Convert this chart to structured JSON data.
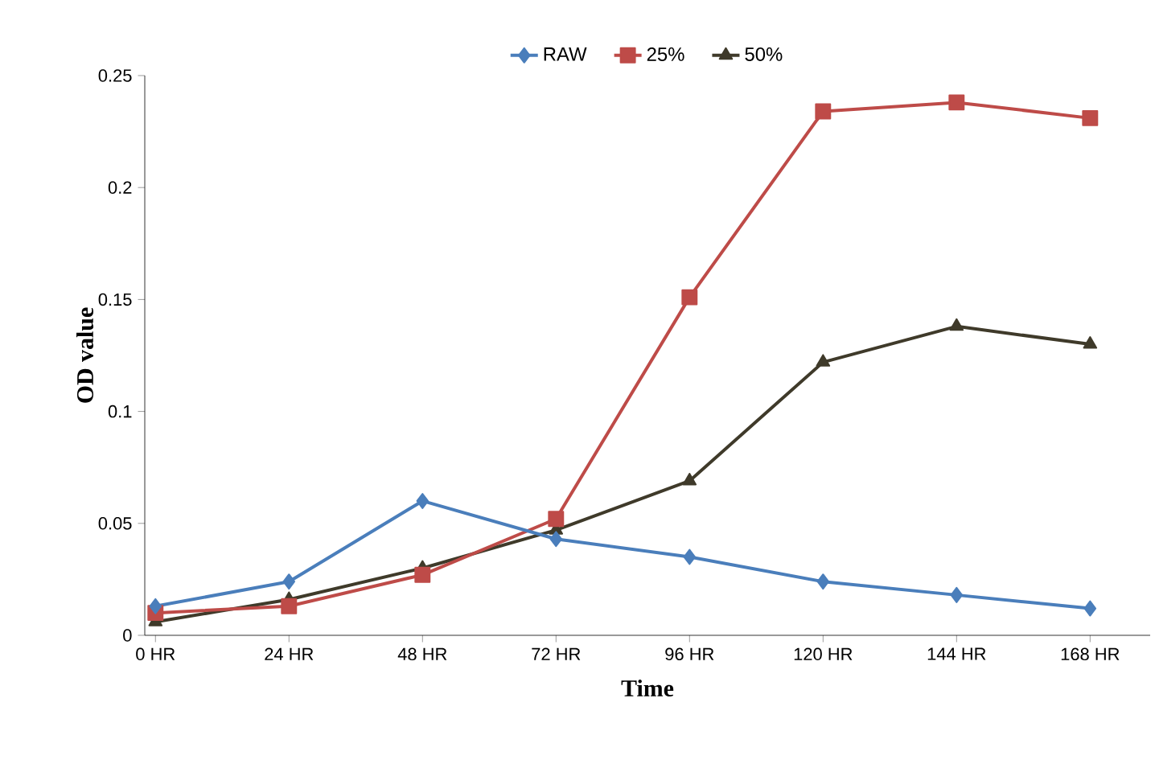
{
  "chart_data": {
    "type": "line",
    "xlabel": "Time",
    "ylabel": "OD value",
    "categories": [
      "0 HR",
      "24 HR",
      "48 HR",
      "72 HR",
      "96 HR",
      "120 HR",
      "144 HR",
      "168 HR"
    ],
    "series": [
      {
        "name": "RAW",
        "color": "#4a7ebb",
        "marker": "diamond",
        "values": [
          0.013,
          0.024,
          0.06,
          0.043,
          0.035,
          0.024,
          0.018,
          0.012
        ]
      },
      {
        "name": "25%",
        "color": "#be4b48",
        "marker": "square",
        "values": [
          0.01,
          0.013,
          0.027,
          0.052,
          0.151,
          0.234,
          0.238,
          0.231
        ]
      },
      {
        "name": "50%",
        "color": "#3f3a2a",
        "marker": "triangle",
        "values": [
          0.006,
          0.016,
          0.03,
          0.047,
          0.069,
          0.122,
          0.138,
          0.13
        ]
      }
    ],
    "ylim": [
      0,
      0.25
    ],
    "yticks": [
      {
        "value": 0,
        "label": "0"
      },
      {
        "value": 0.05,
        "label": "0.05"
      },
      {
        "value": 0.1,
        "label": "0.1"
      },
      {
        "value": 0.15,
        "label": "0.15"
      },
      {
        "value": 0.2,
        "label": "0.2"
      },
      {
        "value": 0.25,
        "label": "0.25"
      }
    ],
    "grid": false,
    "legend": "top",
    "line_style": "solid"
  }
}
